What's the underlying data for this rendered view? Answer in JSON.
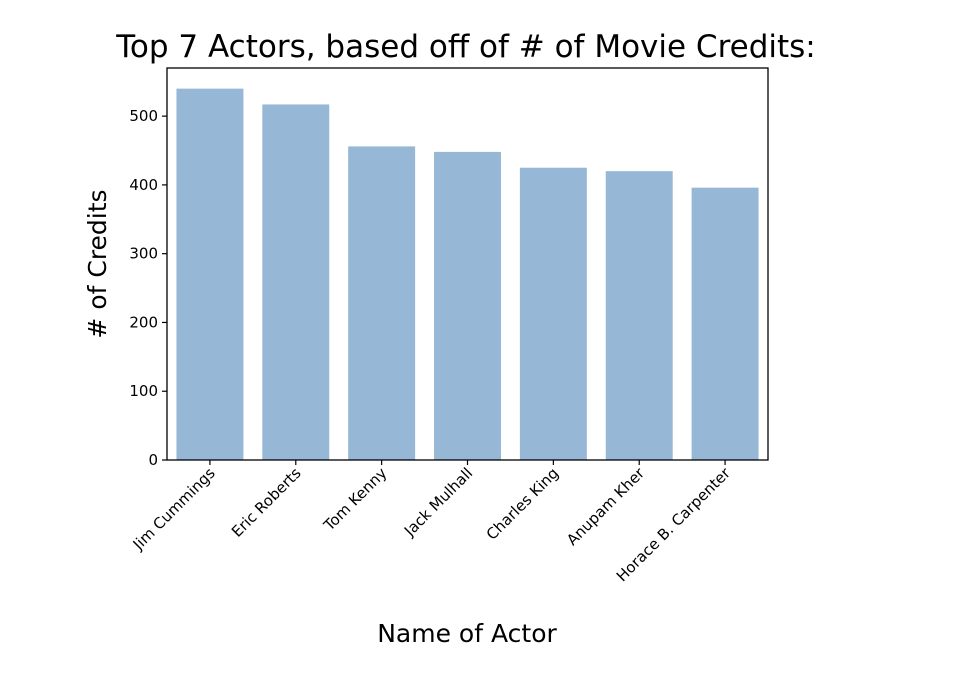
{
  "chart_data": {
    "type": "bar",
    "title": "Top 7 Actors, based off of # of Movie Credits:",
    "xlabel": "Name of Actor",
    "ylabel": "# of Credits",
    "categories": [
      "Jim Cummings",
      "Eric Roberts",
      "Tom Kenny",
      "Jack Mulhall",
      "Charles King",
      "Anupam Kher",
      "Horace B. Carpenter"
    ],
    "values": [
      540,
      517,
      456,
      448,
      425,
      420,
      396
    ],
    "ylim": [
      0,
      570
    ],
    "yticks": [
      0,
      100,
      200,
      300,
      400,
      500
    ],
    "grid": false,
    "legend": "none",
    "colors": {
      "bar": "#96b8d6",
      "axis": "#000000"
    }
  }
}
